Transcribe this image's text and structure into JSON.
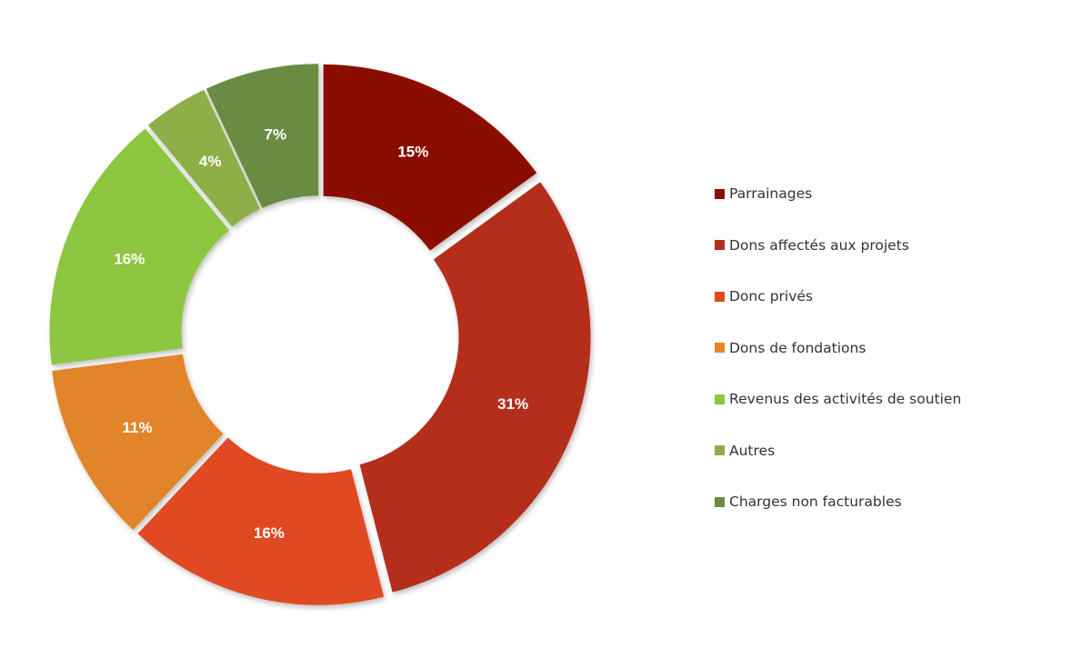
{
  "chart_data": {
    "type": "pie",
    "variant": "donut",
    "exploded": true,
    "legend_position": "right",
    "categories": [
      "Parrainages",
      "Dons affectés aux projets",
      "Donc privés",
      "Dons de fondations",
      "Revenus des activités de soutien",
      "Autres",
      "Charges non facturables"
    ],
    "values": [
      15,
      31,
      16,
      11,
      16,
      4,
      7
    ],
    "value_labels": [
      "15%",
      "31%",
      "16%",
      "11%",
      "16%",
      "4%",
      "7%"
    ],
    "colors": [
      "#8B0E04",
      "#B52F1F",
      "#E04A21",
      "#E2842A",
      "#8DC63F",
      "#8EAE47",
      "#6A8B42"
    ]
  }
}
